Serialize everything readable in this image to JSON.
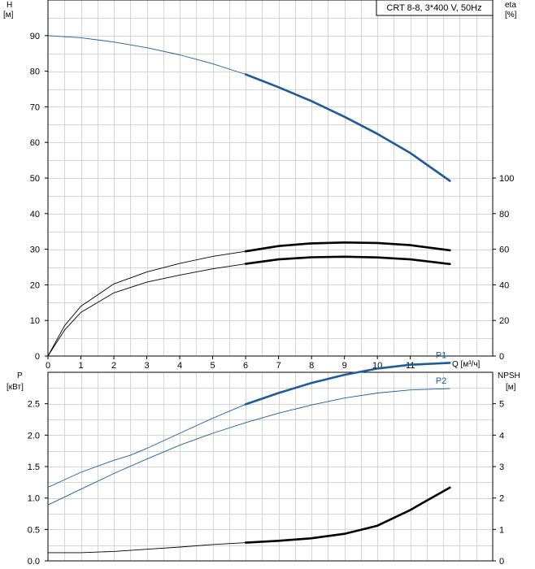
{
  "chart_data": [
    {
      "type": "line",
      "title": "CRT 8-8, 3*400 V, 50Hz",
      "left_axis": {
        "label": "H",
        "unit": "[м]",
        "ylim": [
          0,
          100
        ],
        "ticks": [
          "0",
          "10",
          "20",
          "30",
          "40",
          "50",
          "60",
          "70",
          "80",
          "90"
        ]
      },
      "right_axis": {
        "label": "eta",
        "unit": "[%]",
        "ylim": [
          0,
          200
        ],
        "ticks": [
          "0",
          "20",
          "40",
          "60",
          "80",
          "100"
        ]
      },
      "x_axis": {
        "label": "Q [м³/ч]",
        "xlim": [
          0,
          13.5
        ],
        "ticks": [
          "0",
          "1",
          "2",
          "3",
          "4",
          "5",
          "6",
          "7",
          "8",
          "9",
          "10",
          "11"
        ]
      },
      "grid": true,
      "series": [
        {
          "name": "",
          "axis": "left",
          "color": "#1f5b9a",
          "x": [
            0,
            1,
            2,
            3,
            4,
            5,
            6,
            7,
            8,
            9,
            10,
            11,
            12.2
          ],
          "y": [
            90,
            89.4,
            88.2,
            86.6,
            84.6,
            82.1,
            79.1,
            75.5,
            71.6,
            67.2,
            62.4,
            57,
            49.2
          ],
          "emphasis_from_x": 6
        },
        {
          "name": "",
          "axis": "right",
          "color": "#000000",
          "x": [
            0,
            0.5,
            1,
            2,
            3,
            4,
            5,
            6,
            7,
            8,
            9,
            10,
            11,
            12.2
          ],
          "y": [
            0,
            17,
            28,
            40.5,
            47.2,
            52,
            56,
            58.8,
            61.8,
            63.3,
            63.8,
            63.5,
            62.3,
            59.4
          ],
          "emphasis_from_x": 6
        },
        {
          "name": "",
          "axis": "right",
          "color": "#000000",
          "x": [
            0,
            0.5,
            1,
            2,
            3,
            4,
            5,
            6,
            7,
            8,
            9,
            10,
            11,
            12.2
          ],
          "y": [
            0,
            14.5,
            24.5,
            35.5,
            41.5,
            45.5,
            49,
            51.8,
            54.3,
            55.5,
            55.8,
            55.4,
            54.3,
            51.7
          ],
          "emphasis_from_x": 6
        }
      ]
    },
    {
      "type": "line",
      "left_axis": {
        "label": "P",
        "unit": "[кВт]",
        "ylim": [
          0,
          3
        ],
        "ticks": [
          "0.0",
          "0.5",
          "1.0",
          "1.5",
          "2.0",
          "2.5"
        ]
      },
      "right_axis": {
        "label": "NPSH",
        "unit": "[м]",
        "ylim": [
          0,
          6
        ],
        "ticks": [
          "0",
          "1",
          "2",
          "3",
          "4",
          "5"
        ]
      },
      "grid": true,
      "series": [
        {
          "name": "P1",
          "axis": "left",
          "color": "#1f5b9a",
          "x": [
            0,
            1,
            2,
            2.5,
            3,
            4,
            5,
            6,
            7,
            8,
            9,
            10,
            11,
            12.2
          ],
          "y": [
            1.17,
            1.41,
            1.6,
            1.68,
            1.79,
            2.03,
            2.27,
            2.49,
            2.67,
            2.83,
            2.96,
            3.06,
            3.12,
            3.15
          ],
          "emphasis_from_x": 6
        },
        {
          "name": "P2",
          "axis": "left",
          "color": "#1f5b9a",
          "x": [
            0,
            1,
            2,
            3,
            4,
            5,
            6,
            7,
            8,
            9,
            10,
            11,
            12.2
          ],
          "y": [
            0.89,
            1.14,
            1.39,
            1.62,
            1.84,
            2.03,
            2.2,
            2.35,
            2.48,
            2.59,
            2.67,
            2.72,
            2.74
          ],
          "emphasis_from_x": 99
        },
        {
          "name": "",
          "axis": "right",
          "color": "#000000",
          "x": [
            0,
            1,
            2,
            3,
            4,
            5,
            6,
            7,
            8,
            9,
            10,
            11,
            11.5,
            12.2
          ],
          "y": [
            0.26,
            0.26,
            0.3,
            0.37,
            0.44,
            0.52,
            0.58,
            0.64,
            0.72,
            0.86,
            1.12,
            1.62,
            1.92,
            2.33
          ],
          "emphasis_from_x": 6
        }
      ]
    }
  ]
}
